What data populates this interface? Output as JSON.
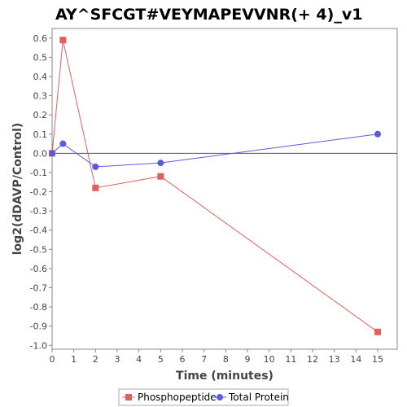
{
  "chart_data": {
    "type": "line",
    "title": "AY^SFCGT#VEYMAPEVVNR(+ 4)_v1",
    "xlabel": "Time (minutes)",
    "ylabel": "log2(dDAVP/Control)",
    "xlim": [
      0,
      15.9
    ],
    "ylim": [
      -1.02,
      0.65
    ],
    "xticks": [
      0,
      1,
      2,
      3,
      4,
      5,
      6,
      7,
      8,
      9,
      10,
      11,
      12,
      13,
      14,
      15
    ],
    "yticks": [
      -1.0,
      -0.9,
      -0.8,
      -0.7,
      -0.6,
      -0.5,
      -0.4,
      -0.3,
      -0.2,
      -0.1,
      0.0,
      0.1,
      0.2,
      0.3,
      0.4,
      0.5,
      0.6
    ],
    "ytick_labels": [
      "-1.0",
      "-0.9",
      "-0.8",
      "-0.7",
      "-0.6",
      "-0.5",
      "-0.4",
      "-0.3",
      "-0.2",
      "-0.1",
      "0.0",
      "0.1",
      "0.2",
      "0.3",
      "0.4",
      "0.5",
      "0.6"
    ],
    "zero_line": true,
    "grid": false,
    "legend_position": "bottom-center",
    "series": [
      {
        "name": "Phosphopeptide",
        "color": "#e06060",
        "marker": "square",
        "x": [
          0,
          0.5,
          2,
          5,
          15
        ],
        "y": [
          0.0,
          0.59,
          -0.18,
          -0.12,
          -0.93
        ]
      },
      {
        "name": "Total Protein",
        "color": "#5b5be0",
        "marker": "circle",
        "x": [
          0,
          0.5,
          2,
          5,
          15
        ],
        "y": [
          0.0,
          0.05,
          -0.07,
          -0.05,
          0.1
        ]
      }
    ]
  }
}
